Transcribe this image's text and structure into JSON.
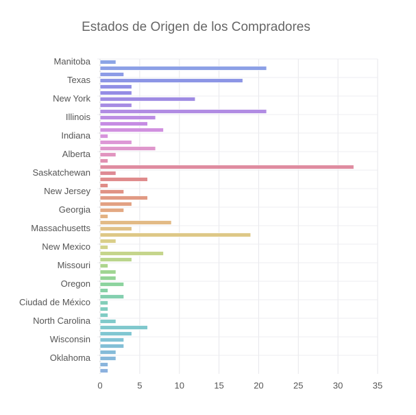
{
  "chart_data": {
    "type": "barh",
    "title": "Estados de Origen de los Compradores",
    "categories": [
      "Manitoba",
      null,
      null,
      "Texas",
      null,
      null,
      "New York",
      null,
      null,
      "Illinois",
      null,
      null,
      "Indiana",
      null,
      null,
      "Alberta",
      null,
      null,
      "Saskatchewan",
      null,
      null,
      "New Jersey",
      null,
      null,
      "Georgia",
      null,
      null,
      "Massachusetts",
      null,
      null,
      "New Mexico",
      null,
      null,
      "Missouri",
      null,
      null,
      "Oregon",
      null,
      null,
      "Ciudad de México",
      null,
      null,
      "North Carolina",
      null,
      null,
      "Wisconsin",
      null,
      null,
      "Oklahoma",
      null,
      null
    ],
    "values": [
      2,
      21,
      3,
      18,
      4,
      4,
      12,
      4,
      21,
      7,
      6,
      8,
      1,
      4,
      7,
      2,
      1,
      32,
      2,
      6,
      1,
      3,
      6,
      4,
      3,
      1,
      9,
      4,
      19,
      2,
      1,
      8,
      4,
      1,
      2,
      2,
      3,
      1,
      3,
      1,
      1,
      1,
      2,
      6,
      4,
      3,
      3,
      2,
      2,
      1,
      1
    ],
    "colors": [
      "#7f9be3",
      "#7f96e3",
      "#7f90e3",
      "#8089e2",
      "#8584e2",
      "#8a80e2",
      "#9580e0",
      "#9d80e0",
      "#a980e0",
      "#b480e0",
      "#c080e0",
      "#cc85dc",
      "#d38ad8",
      "#d98cd2",
      "#dc8cc6",
      "#de88b8",
      "#de84a8",
      "#dc7f96",
      "#da7d88",
      "#db7e80",
      "#dc807a",
      "#dd8778",
      "#de8f77",
      "#df9776",
      "#e0a076",
      "#e0aa76",
      "#dfb278",
      "#ddba7a",
      "#dac27a",
      "#d6c97c",
      "#ccce7e",
      "#bfd07e",
      "#b2d080",
      "#a4d082",
      "#96d086",
      "#8acf8c",
      "#80ce94",
      "#7acc9c",
      "#76caa6",
      "#74c9b0",
      "#72c8b8",
      "#72c6be",
      "#72c4c4",
      "#72c2c8",
      "#72c0cc",
      "#74bcd0",
      "#76b8d2",
      "#78b4d4",
      "#7ab0d6",
      "#7cacd8",
      "#7ea8da"
    ],
    "xlim": [
      0,
      35
    ],
    "xticks": [
      0,
      5,
      10,
      15,
      20,
      25,
      30,
      35
    ],
    "grid": true
  }
}
